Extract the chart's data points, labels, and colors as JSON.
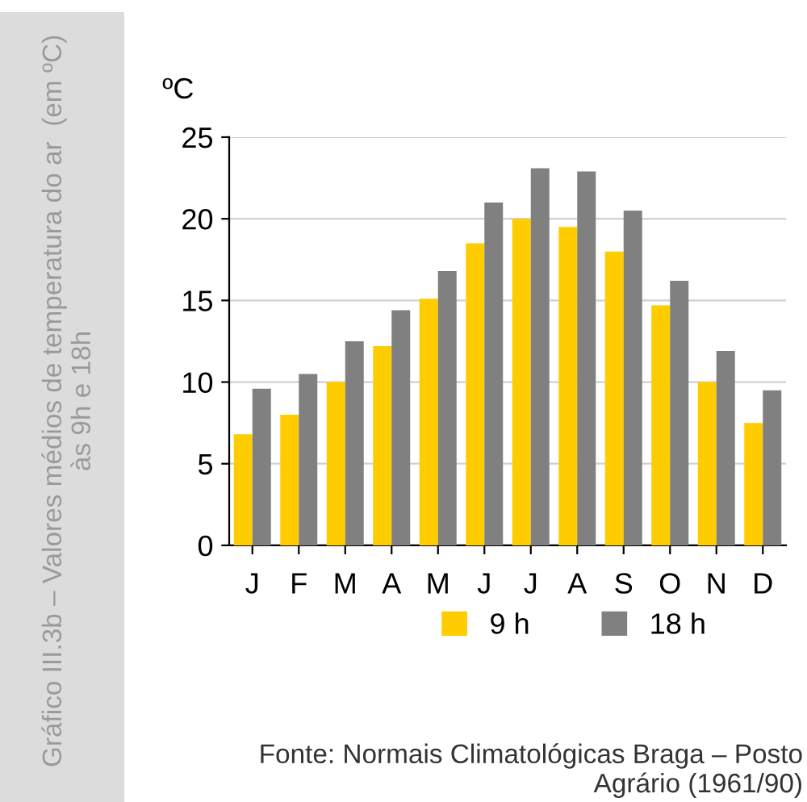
{
  "chart_data": {
    "type": "bar",
    "title": "Gráfico III.3b – Valores médios de temperatura do ar  (em ºC)\nàs 9h e 18h",
    "ylabel": "ºC",
    "categories": [
      "J",
      "F",
      "M",
      "A",
      "M",
      "J",
      "J",
      "A",
      "S",
      "O",
      "N",
      "D"
    ],
    "series": [
      {
        "name": "9 h",
        "color": "#ffcc00",
        "values": [
          6.8,
          8.0,
          10.0,
          12.2,
          15.1,
          18.5,
          20.0,
          19.5,
          18.0,
          14.7,
          10.0,
          7.5
        ]
      },
      {
        "name": "18 h",
        "color": "#808080",
        "values": [
          9.6,
          10.5,
          12.5,
          14.4,
          16.8,
          21.0,
          23.1,
          22.9,
          20.5,
          16.2,
          11.9,
          9.5
        ]
      }
    ],
    "ylim": [
      0,
      25
    ],
    "yticks": [
      0,
      5,
      10,
      15,
      20,
      25
    ],
    "grid": "y",
    "legend": "bottom",
    "annotations": [
      "Fonte: Normais Climatológicas Braga – Posto\nAgrário (1961/90)"
    ]
  }
}
